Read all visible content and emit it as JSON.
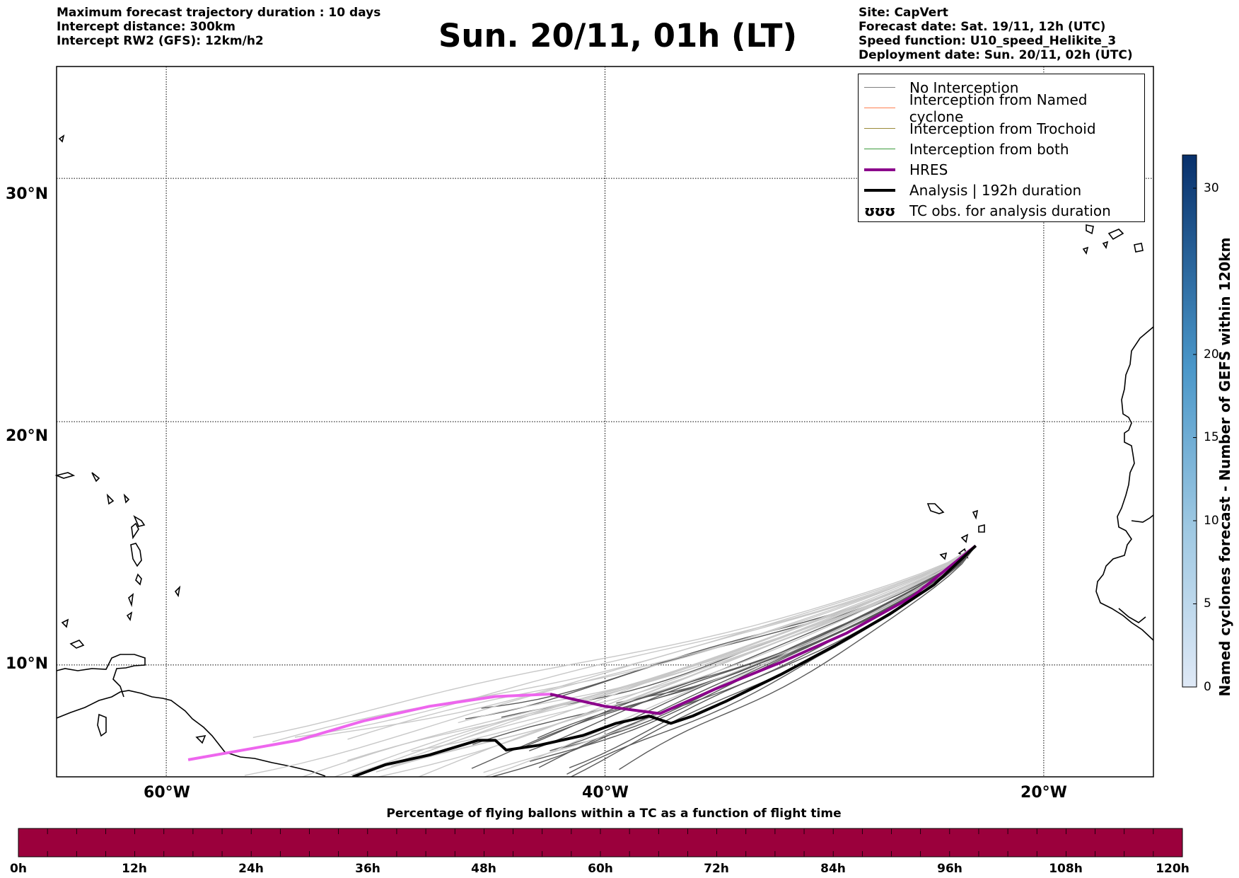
{
  "header": {
    "left_lines": [
      "Maximum forecast trajectory duration : 10 days",
      "Intercept distance: 300km",
      "Intercept RW2 (GFS):  12km/h2"
    ],
    "title": "Sun. 20/11, 01h (LT)",
    "right_lines": [
      "Site: CapVert",
      "Forecast date: Sat. 19/11, 12h (UTC)",
      "Speed function: U10_speed_Helikite_3",
      "Deployment date: Sun. 20/11, 02h (UTC)"
    ]
  },
  "map": {
    "lat_ticks": [
      "30°N",
      "20°N",
      "10°N"
    ],
    "lon_ticks": [
      "60°W",
      "40°W",
      "20°W"
    ],
    "extent": {
      "lon_min": -65,
      "lon_max": -15,
      "lat_min": 5.4,
      "lat_max": 34.6
    },
    "grid": true
  },
  "legend": {
    "items": [
      {
        "label": "No Interception",
        "color": "#808080",
        "style": "thin"
      },
      {
        "label": "Interception from Named cyclone",
        "color": "#ff7f50",
        "style": "thin"
      },
      {
        "label": "Interception from Trochoid",
        "color": "#9a8a3a",
        "style": "thin"
      },
      {
        "label": "Interception from both",
        "color": "#3a9a3a",
        "style": "thin"
      },
      {
        "label": "HRES",
        "color": "#8b008b",
        "style": "thick"
      },
      {
        "label": "Analysis | 192h duration",
        "color": "#000000",
        "style": "thick"
      },
      {
        "label": "TC obs. for analysis duration",
        "color": "#000000",
        "style": "symbol",
        "symbol": "ʊʊʊ"
      }
    ]
  },
  "colorbar": {
    "label": "Named cyclones forecast - Number of GEFS within 120km",
    "ticks": [
      "0",
      "5",
      "10",
      "15",
      "20",
      "30"
    ],
    "min": 0,
    "max": 32
  },
  "timebar": {
    "title": "Percentage of flying ballons within a TC as a function of flight time",
    "ticks": [
      "0h",
      "12h",
      "24h",
      "36h",
      "48h",
      "60h",
      "72h",
      "84h",
      "96h",
      "108h",
      "120h"
    ],
    "fill_color": "#9b003c",
    "percentage_values": [
      0,
      0,
      0,
      0,
      0,
      0,
      0,
      0,
      0,
      0,
      0
    ]
  },
  "chart_data": {
    "type": "line",
    "title": "Sun. 20/11, 01h (LT)",
    "x_axis": "longitude",
    "y_axis": "latitude",
    "xlim": [
      -65,
      -15
    ],
    "ylim": [
      5.4,
      34.6
    ],
    "site": {
      "name": "CapVert",
      "lon": -23.1,
      "lat": 14.9
    },
    "series": [
      {
        "name": "HRES",
        "color": "#8b008b",
        "points": [
          [
            -23.1,
            14.9
          ],
          [
            -26.0,
            12.8
          ],
          [
            -29.0,
            11.3
          ],
          [
            -32.0,
            10.1
          ],
          [
            -35.0,
            9.0
          ],
          [
            -37.5,
            8.0
          ],
          [
            -40.0,
            8.3
          ],
          [
            -42.5,
            8.8
          ],
          [
            -45.0,
            8.7
          ],
          [
            -48.0,
            8.3
          ],
          [
            -51.0,
            7.7
          ],
          [
            -54.0,
            6.9
          ],
          [
            -56.5,
            6.5
          ],
          [
            -59.0,
            6.1
          ]
        ]
      },
      {
        "name": "Analysis | 192h duration",
        "color": "#000000",
        "points": [
          [
            -23.1,
            14.9
          ],
          [
            -25.0,
            13.3
          ],
          [
            -27.0,
            12.1
          ],
          [
            -29.5,
            10.8
          ],
          [
            -32.0,
            9.6
          ],
          [
            -34.5,
            8.5
          ],
          [
            -36.0,
            7.9
          ],
          [
            -37.0,
            7.6
          ],
          [
            -38.0,
            7.9
          ],
          [
            -39.5,
            7.6
          ],
          [
            -41.0,
            7.1
          ],
          [
            -43.0,
            6.7
          ],
          [
            -44.5,
            6.5
          ],
          [
            -45.0,
            6.9
          ],
          [
            -45.8,
            6.9
          ],
          [
            -48.0,
            6.3
          ],
          [
            -50.0,
            5.9
          ],
          [
            -51.5,
            5.4
          ]
        ]
      }
    ]
  }
}
